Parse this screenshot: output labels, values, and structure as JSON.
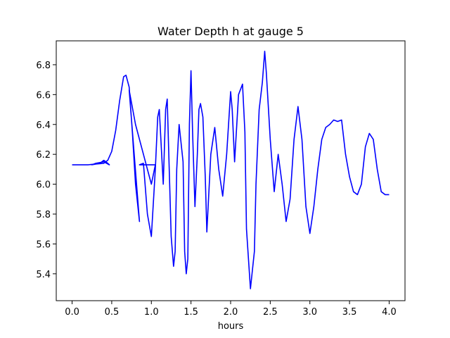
{
  "chart_data": {
    "type": "line",
    "title": "Water Depth h at gauge 5",
    "xlabel": "hours",
    "ylabel": "",
    "xlim": [
      -0.2,
      4.2
    ],
    "ylim": [
      5.22,
      6.96
    ],
    "xticks": [
      0.0,
      0.5,
      1.0,
      1.5,
      2.0,
      2.5,
      3.0,
      3.5,
      4.0
    ],
    "xtick_labels": [
      "0.0",
      "0.5",
      "1.0",
      "1.5",
      "2.0",
      "2.5",
      "3.0",
      "3.5",
      "4.0"
    ],
    "yticks": [
      5.4,
      5.6,
      5.8,
      6.0,
      6.2,
      6.4,
      6.6,
      6.8
    ],
    "ytick_labels": [
      "5.4",
      "5.6",
      "5.8",
      "6.0",
      "6.2",
      "6.4",
      "6.6",
      "6.8"
    ],
    "grid": false,
    "line_color": "#0000ff",
    "series": [
      {
        "name": "",
        "x": [
          0.0,
          0.1,
          0.2,
          0.3,
          0.35,
          0.4,
          0.45,
          0.47,
          0.4,
          0.3,
          0.25,
          0.3,
          0.4,
          0.45,
          0.5,
          0.55,
          0.6,
          0.65,
          0.68,
          0.72,
          0.76,
          0.8,
          0.85,
          0.72,
          0.8,
          0.9,
          1.0,
          1.05,
          0.9,
          0.85,
          0.9,
          0.95,
          1.0,
          1.05,
          1.08,
          1.1,
          1.12,
          1.15,
          1.18,
          1.2,
          1.22,
          1.25,
          1.28,
          1.3,
          1.32,
          1.35,
          1.4,
          1.42,
          1.44,
          1.46,
          1.48,
          1.5,
          1.52,
          1.55,
          1.58,
          1.6,
          1.62,
          1.65,
          1.68,
          1.7,
          1.75,
          1.8,
          1.85,
          1.9,
          1.95,
          2.0,
          2.02,
          2.05,
          2.1,
          2.15,
          2.18,
          2.2,
          2.25,
          2.3,
          2.32,
          2.36,
          2.4,
          2.43,
          2.45,
          2.5,
          2.55,
          2.6,
          2.65,
          2.7,
          2.75,
          2.8,
          2.85,
          2.9,
          2.95,
          3.0,
          3.05,
          3.1,
          3.15,
          3.2,
          3.25,
          3.3,
          3.35,
          3.4,
          3.45,
          3.5,
          3.55,
          3.6,
          3.65,
          3.7,
          3.75,
          3.8,
          3.85,
          3.9,
          3.95,
          4.0
        ],
        "y": [
          6.13,
          6.13,
          6.13,
          6.135,
          6.14,
          6.16,
          6.14,
          6.13,
          6.15,
          6.14,
          6.13,
          6.135,
          6.14,
          6.16,
          6.22,
          6.36,
          6.56,
          6.72,
          6.73,
          6.65,
          6.35,
          6.0,
          5.75,
          6.63,
          6.4,
          6.2,
          6.0,
          6.13,
          6.13,
          6.13,
          6.14,
          5.8,
          5.65,
          6.1,
          6.45,
          6.5,
          6.3,
          6.0,
          6.5,
          6.57,
          6.2,
          5.65,
          5.45,
          5.55,
          6.1,
          6.4,
          6.15,
          5.55,
          5.4,
          5.5,
          6.4,
          6.76,
          6.35,
          5.85,
          6.2,
          6.5,
          6.54,
          6.45,
          6.05,
          5.68,
          6.2,
          6.38,
          6.1,
          5.92,
          6.2,
          6.62,
          6.5,
          6.15,
          6.6,
          6.67,
          6.35,
          5.7,
          5.3,
          5.55,
          6.0,
          6.5,
          6.68,
          6.89,
          6.75,
          6.3,
          5.95,
          6.2,
          6.0,
          5.75,
          5.9,
          6.3,
          6.52,
          6.3,
          5.85,
          5.67,
          5.85,
          6.1,
          6.3,
          6.38,
          6.4,
          6.43,
          6.42,
          6.43,
          6.2,
          6.05,
          5.95,
          5.93,
          6.0,
          6.25,
          6.34,
          6.3,
          6.1,
          5.95,
          5.93,
          5.93
        ]
      }
    ]
  }
}
